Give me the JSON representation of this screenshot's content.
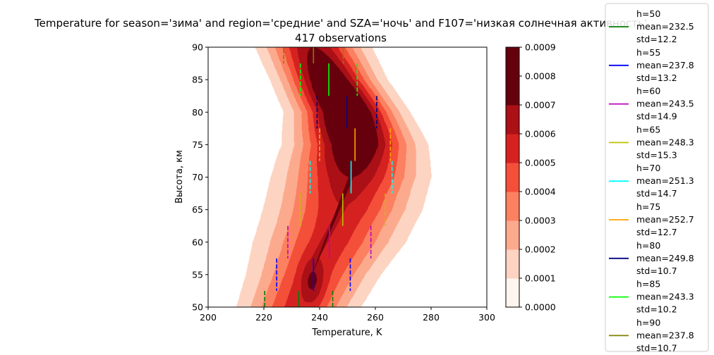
{
  "chart_data": {
    "type": "contour",
    "title": "Temperature for season='зима' and region='средние' and SZA='ночь' and F107='низкая солнечная активность'",
    "subtitle": "417 observations",
    "xlabel": "Temperature, K",
    "ylabel": "Высота, км",
    "xlim": [
      200,
      300
    ],
    "ylim": [
      50,
      90
    ],
    "xticks": [
      "200",
      "220",
      "240",
      "260",
      "280",
      "300"
    ],
    "yticks": [
      "50",
      "55",
      "60",
      "65",
      "70",
      "75",
      "80",
      "85",
      "90"
    ],
    "colorbar": {
      "cmap": "Reds",
      "levels": [
        0.0,
        0.0001,
        0.0002,
        0.0003,
        0.0004,
        0.0005,
        0.0006,
        0.0007,
        0.0008,
        0.0009
      ],
      "ticks": [
        "0.0000",
        "0.0001",
        "0.0002",
        "0.0003",
        "0.0004",
        "0.0005",
        "0.0006",
        "0.0007",
        "0.0008",
        "0.0009"
      ],
      "colors": [
        "#fff5f0",
        "#fdd4c2",
        "#fcaa8e",
        "#fc8161",
        "#f44f39",
        "#d52221",
        "#aa1016",
        "#67000d",
        "#67000d"
      ]
    },
    "series": [
      {
        "name": "h=50",
        "mean_label": " mean=232.5",
        "std_label": " std=12.2",
        "h": 50,
        "mean": 232.5,
        "std": 12.2,
        "color": "#008000"
      },
      {
        "name": "h=55",
        "mean_label": " mean=237.8",
        "std_label": " std=13.2",
        "h": 55,
        "mean": 237.8,
        "std": 13.2,
        "color": "#0000ff"
      },
      {
        "name": "h=60",
        "mean_label": " mean=243.5",
        "std_label": " std=14.9",
        "h": 60,
        "mean": 243.5,
        "std": 14.9,
        "color": "#bf00bf"
      },
      {
        "name": "h=65",
        "mean_label": " mean=248.3",
        "std_label": " std=15.3",
        "h": 65,
        "mean": 248.3,
        "std": 15.3,
        "color": "#bfbf00"
      },
      {
        "name": "h=70",
        "mean_label": " mean=251.3",
        "std_label": " std=14.7",
        "h": 70,
        "mean": 251.3,
        "std": 14.7,
        "color": "#00ffff"
      },
      {
        "name": "h=75",
        "mean_label": " mean=252.7",
        "std_label": " std=12.7",
        "h": 75,
        "mean": 252.7,
        "std": 12.7,
        "color": "#ffa500"
      },
      {
        "name": "h=80",
        "mean_label": " mean=249.8",
        "std_label": " std=10.7",
        "h": 80,
        "mean": 249.8,
        "std": 10.7,
        "color": "#000080"
      },
      {
        "name": "h=85",
        "mean_label": " mean=243.3",
        "std_label": " std=10.2",
        "h": 85,
        "mean": 243.3,
        "std": 10.2,
        "color": "#00ff00"
      },
      {
        "name": "h=90",
        "mean_label": " mean=237.8",
        "std_label": " std=10.7",
        "h": 90,
        "mean": 237.8,
        "std": 10.7,
        "color": "#808000"
      }
    ],
    "grid": false,
    "legend_position": "right"
  }
}
